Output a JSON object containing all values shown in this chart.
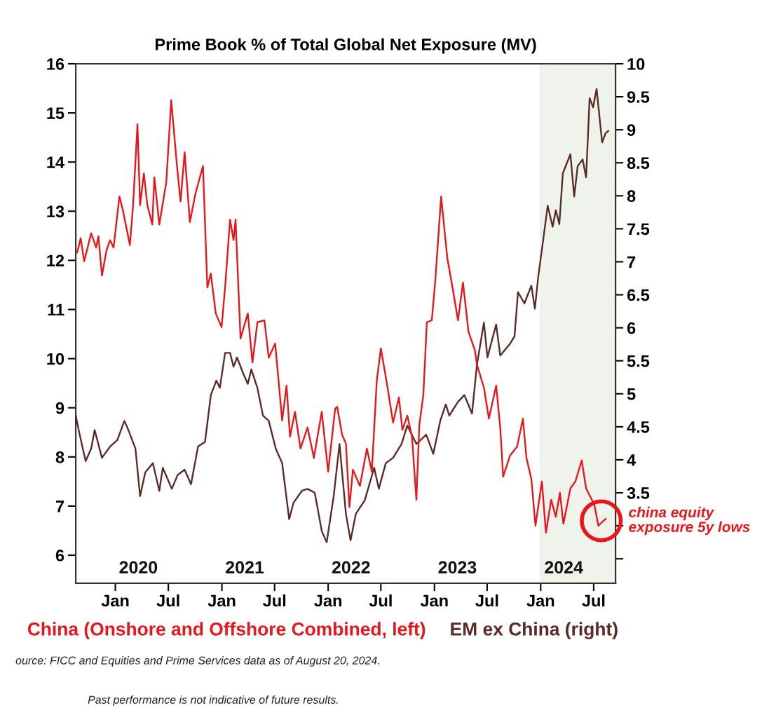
{
  "chart_data": {
    "type": "line",
    "title": "Prime Book % of Total Global Net Exposure (MV)",
    "xlim": [
      "2019-08-18",
      "2024-09-14"
    ],
    "xticks": [
      {
        "value": "2020-01-01",
        "label": "Jan"
      },
      {
        "value": "2020-07-01",
        "label": "Jul"
      },
      {
        "value": "2021-01-01",
        "label": "Jan"
      },
      {
        "value": "2021-07-01",
        "label": "Jul"
      },
      {
        "value": "2022-01-01",
        "label": "Jan"
      },
      {
        "value": "2022-07-01",
        "label": "Jul"
      },
      {
        "value": "2023-01-01",
        "label": "Jan"
      },
      {
        "value": "2023-07-01",
        "label": "Jul"
      },
      {
        "value": "2024-01-01",
        "label": "Jan"
      },
      {
        "value": "2024-07-01",
        "label": "Jul"
      }
    ],
    "ylim": [
      5.43,
      16
    ],
    "yticks": [
      6,
      7,
      8,
      9,
      10,
      11,
      12,
      13,
      14,
      15,
      16
    ],
    "y2lim": [
      2.13,
      10
    ],
    "y2ticks": [
      {
        "value": 2.5,
        "label": null
      },
      {
        "value": 3,
        "label": null
      },
      3.5,
      4,
      4.5,
      5,
      5.5,
      6,
      6.5,
      7,
      7.5,
      8,
      8.5,
      9,
      9.5,
      10
    ],
    "legend": "bottom",
    "bands": [
      {
        "axis": "x",
        "from": "2023-12-28",
        "to": "2024-09-14",
        "color": "#eef3ec"
      }
    ],
    "series": [
      {
        "name": "China (Onshore and Offshore Combined, left)",
        "color": "#e8161b",
        "axis": "y",
        "x": [
          "2019-08-23",
          "2019-09-04",
          "2019-09-16",
          "2019-10-10",
          "2019-10-27",
          "2019-11-04",
          "2019-11-16",
          "2019-12-02",
          "2019-12-14",
          "2019-12-26",
          "2020-01-15",
          "2020-01-27",
          "2020-02-20",
          "2020-03-02",
          "2020-03-17",
          "2020-03-26",
          "2020-04-08",
          "2020-04-20",
          "2020-05-07",
          "2020-05-14",
          "2020-05-31",
          "2020-06-24",
          "2020-07-11",
          "2020-07-30",
          "2020-08-12",
          "2020-08-26",
          "2020-09-13",
          "2020-10-02",
          "2020-10-28",
          "2020-11-12",
          "2020-11-24",
          "2020-12-11",
          "2020-12-31",
          "2021-01-12",
          "2021-01-29",
          "2021-02-10",
          "2021-02-17",
          "2021-03-06",
          "2021-03-31",
          "2021-04-16",
          "2021-05-03",
          "2021-05-27",
          "2021-06-11",
          "2021-07-03",
          "2021-07-27",
          "2021-08-11",
          "2021-08-23",
          "2021-09-09",
          "2021-09-28",
          "2021-10-22",
          "2021-11-13",
          "2021-12-10",
          "2022-01-01",
          "2022-01-25",
          "2022-02-01",
          "2022-02-18",
          "2022-03-03",
          "2022-03-15",
          "2022-03-27",
          "2022-04-20",
          "2022-05-14",
          "2022-05-31",
          "2022-06-17",
          "2022-07-01",
          "2022-07-23",
          "2022-08-12",
          "2022-09-01",
          "2022-09-13",
          "2022-09-30",
          "2022-10-16",
          "2022-10-31",
          "2022-11-10",
          "2022-11-24",
          "2022-12-06",
          "2022-12-23",
          "2023-01-04",
          "2023-01-24",
          "2023-02-14",
          "2023-03-04",
          "2023-03-23",
          "2023-04-09",
          "2023-04-28",
          "2023-05-20",
          "2023-05-27",
          "2023-06-20",
          "2023-07-07",
          "2023-08-01",
          "2023-08-15",
          "2023-08-25",
          "2023-09-18",
          "2023-10-12",
          "2023-11-01",
          "2023-11-13",
          "2023-11-30",
          "2023-12-14",
          "2024-01-05",
          "2024-01-19",
          "2024-02-06",
          "2024-02-22",
          "2024-03-07",
          "2024-03-19",
          "2024-04-12",
          "2024-04-29",
          "2024-05-21",
          "2024-06-05",
          "2024-07-03",
          "2024-07-17",
          "2024-08-11"
        ],
        "values": [
          12.16,
          12.45,
          11.98,
          12.55,
          12.26,
          12.49,
          11.69,
          12.21,
          12.41,
          12.26,
          13.3,
          13.02,
          12.31,
          13.12,
          14.77,
          13.12,
          13.77,
          13.12,
          12.73,
          13.69,
          12.73,
          13.59,
          15.26,
          13.97,
          13.2,
          14.2,
          12.78,
          13.35,
          13.92,
          11.45,
          11.73,
          10.92,
          10.64,
          11.45,
          12.83,
          12.41,
          12.83,
          10.41,
          10.92,
          9.92,
          10.74,
          10.78,
          10.02,
          10.31,
          8.74,
          9.45,
          8.41,
          8.92,
          8.17,
          8.6,
          7.98,
          8.92,
          7.7,
          8.98,
          9.02,
          8.45,
          8.27,
          6.98,
          7.74,
          7.41,
          8.17,
          7.7,
          9.55,
          10.21,
          9.45,
          8.7,
          9.21,
          8.55,
          8.84,
          8.41,
          7.13,
          8.64,
          9.27,
          10.74,
          10.78,
          11.59,
          13.3,
          12.06,
          11.45,
          10.78,
          11.55,
          10.55,
          10.17,
          9.88,
          9.41,
          8.78,
          9.45,
          8.6,
          7.6,
          8.03,
          8.21,
          8.78,
          7.98,
          7.55,
          6.6,
          7.5,
          6.46,
          7.13,
          6.78,
          7.27,
          6.64,
          7.36,
          7.5,
          7.93,
          7.36,
          7.03,
          6.6,
          6.74
        ]
      },
      {
        "name": "EM ex China (right)",
        "color": "#5a2a27",
        "axis": "y2",
        "x": [
          "2019-08-18",
          "2019-08-30",
          "2019-09-21",
          "2019-10-10",
          "2019-10-22",
          "2019-11-16",
          "2019-12-14",
          "2020-01-08",
          "2020-02-01",
          "2020-02-15",
          "2020-03-10",
          "2020-03-26",
          "2020-04-13",
          "2020-05-09",
          "2020-05-31",
          "2020-06-12",
          "2020-07-13",
          "2020-08-02",
          "2020-08-26",
          "2020-09-17",
          "2020-10-11",
          "2020-11-04",
          "2020-11-24",
          "2020-12-13",
          "2020-12-25",
          "2021-01-12",
          "2021-01-29",
          "2021-02-10",
          "2021-02-22",
          "2021-03-16",
          "2021-03-31",
          "2021-04-12",
          "2021-05-03",
          "2021-05-22",
          "2021-06-11",
          "2021-07-05",
          "2021-07-27",
          "2021-08-20",
          "2021-09-04",
          "2021-10-03",
          "2021-10-22",
          "2021-11-16",
          "2021-12-10",
          "2021-12-27",
          "2022-01-20",
          "2022-02-09",
          "2022-03-03",
          "2022-03-19",
          "2022-04-06",
          "2022-05-07",
          "2022-06-08",
          "2022-06-24",
          "2022-07-18",
          "2022-08-12",
          "2022-09-10",
          "2022-09-30",
          "2022-10-31",
          "2022-12-04",
          "2022-12-28",
          "2023-01-21",
          "2023-02-09",
          "2023-02-21",
          "2023-03-23",
          "2023-04-14",
          "2023-05-10",
          "2023-05-27",
          "2023-06-20",
          "2023-07-02",
          "2023-08-01",
          "2023-08-15",
          "2023-09-18",
          "2023-10-03",
          "2023-10-15",
          "2023-11-06",
          "2023-11-30",
          "2023-12-12",
          "2023-12-24",
          "2024-01-08",
          "2024-01-25",
          "2024-02-11",
          "2024-02-22",
          "2024-03-05",
          "2024-03-17",
          "2024-04-12",
          "2024-04-25",
          "2024-05-07",
          "2024-05-24",
          "2024-06-05",
          "2024-06-17",
          "2024-06-29",
          "2024-07-11",
          "2024-07-30",
          "2024-08-11",
          "2024-08-20"
        ],
        "values": [
          4.67,
          4.41,
          3.98,
          4.17,
          4.45,
          4.03,
          4.2,
          4.3,
          4.59,
          4.45,
          4.17,
          3.45,
          3.81,
          3.95,
          3.53,
          3.88,
          3.56,
          3.77,
          3.85,
          3.63,
          4.2,
          4.27,
          4.98,
          5.2,
          5.09,
          5.62,
          5.62,
          5.41,
          5.55,
          5.3,
          5.15,
          5.37,
          5.09,
          4.67,
          4.59,
          4.17,
          3.95,
          3.1,
          3.35,
          3.53,
          3.56,
          3.5,
          2.92,
          2.75,
          3.45,
          4.24,
          3.18,
          2.78,
          3.18,
          3.39,
          3.88,
          3.56,
          3.95,
          4.03,
          4.24,
          4.52,
          4.24,
          4.38,
          4.09,
          4.59,
          4.84,
          4.67,
          4.88,
          4.98,
          4.7,
          5.44,
          6.08,
          5.55,
          6.05,
          5.58,
          5.76,
          5.87,
          6.54,
          6.37,
          6.64,
          6.29,
          6.79,
          7.28,
          7.85,
          7.53,
          7.78,
          7.57,
          8.34,
          8.63,
          7.99,
          8.45,
          8.55,
          8.28,
          9.48,
          9.34,
          9.62,
          8.81,
          8.95,
          8.98
        ]
      }
    ],
    "annotations": [
      "2020",
      "2021",
      "2022",
      "2023",
      "2024",
      {
        "text": "china equity\nexposure 5y lows",
        "x": "2024-07-27",
        "y": 6.7
      },
      "ource: FICC and Equities and Prime Services data as of August 20, 2024.",
      "Past performance is not indicative of future results."
    ]
  }
}
